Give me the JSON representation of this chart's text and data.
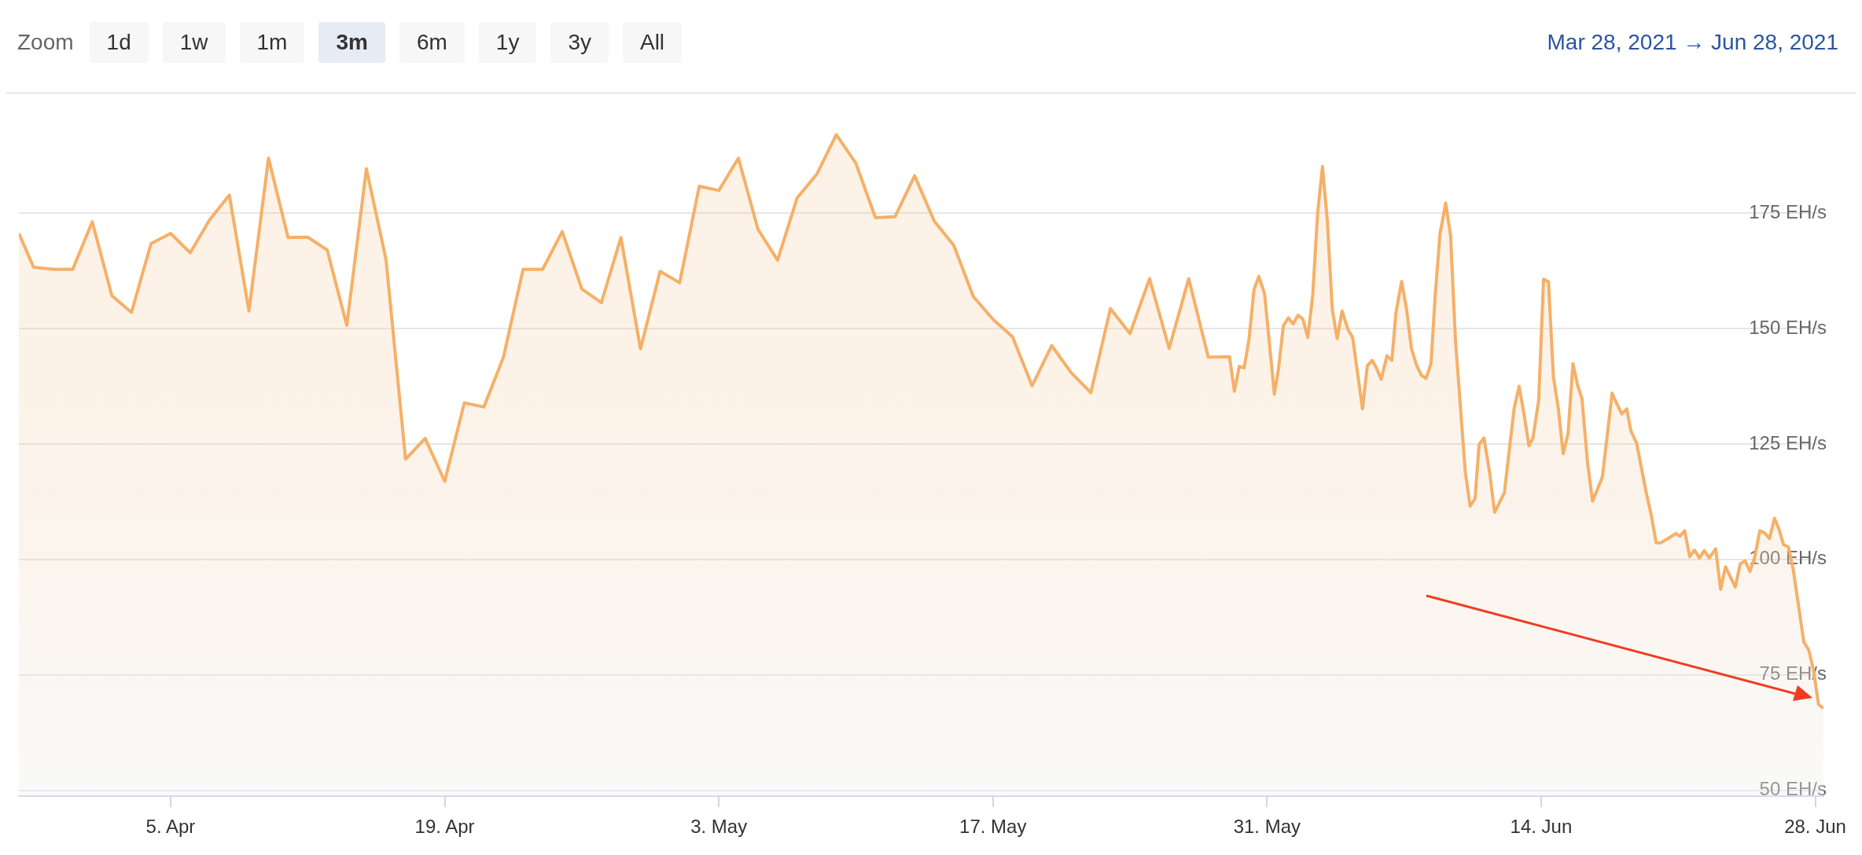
{
  "chart_data": {
    "type": "area",
    "annotations": [
      "Zoom",
      "1d",
      "1w",
      "1m",
      "3m",
      "6m",
      "1y",
      "3y",
      "All",
      "Mar 28, 2021 → Jun 28, 2021"
    ],
    "x": [
      "2021-03-28T06:00",
      "2021-03-29",
      "2021-03-30",
      "2021-03-31",
      "2021-04-01",
      "2021-04-02",
      "2021-04-03",
      "2021-04-04",
      "2021-04-05",
      "2021-04-06",
      "2021-04-07",
      "2021-04-08",
      "2021-04-09",
      "2021-04-10",
      "2021-04-11",
      "2021-04-12",
      "2021-04-13",
      "2021-04-14",
      "2021-04-15",
      "2021-04-16",
      "2021-04-17",
      "2021-04-18",
      "2021-04-19",
      "2021-04-20",
      "2021-04-21",
      "2021-04-22",
      "2021-04-23",
      "2021-04-24",
      "2021-04-25",
      "2021-04-26",
      "2021-04-27",
      "2021-04-28",
      "2021-04-29",
      "2021-04-30",
      "2021-05-01",
      "2021-05-02",
      "2021-05-03",
      "2021-05-04",
      "2021-05-05",
      "2021-05-06",
      "2021-05-07",
      "2021-05-08",
      "2021-05-09",
      "2021-05-10",
      "2021-05-11",
      "2021-05-12",
      "2021-05-13",
      "2021-05-14",
      "2021-05-15",
      "2021-05-16",
      "2021-05-17",
      "2021-05-18",
      "2021-05-19",
      "2021-05-20",
      "2021-05-21",
      "2021-05-22",
      "2021-05-23",
      "2021-05-24",
      "2021-05-25",
      "2021-05-26",
      "2021-05-27",
      "2021-05-28",
      "2021-05-29T02:00",
      "2021-05-29T08:00",
      "2021-05-29T14:00",
      "2021-05-29T20:00",
      "2021-05-30T02:00",
      "2021-05-30T08:00",
      "2021-05-30T14:00",
      "2021-05-30T21:00",
      "2021-05-31T09:00",
      "2021-05-31T14:00",
      "2021-05-31T20:00",
      "2021-06-01T02:00",
      "2021-06-01T08:00",
      "2021-06-01T14:00",
      "2021-06-01T20:00",
      "2021-06-02T02:00",
      "2021-06-02T08:00",
      "2021-06-02T14:00",
      "2021-06-02T20:00",
      "2021-06-03T02:00",
      "2021-06-03T08:00",
      "2021-06-03T14:00",
      "2021-06-03T20:00",
      "2021-06-04T03:00",
      "2021-06-04T09:00",
      "2021-06-04T21:00",
      "2021-06-05T03:00",
      "2021-06-05T09:00",
      "2021-06-05T14:00",
      "2021-06-05T20:00",
      "2021-06-06T03:00",
      "2021-06-06T09:00",
      "2021-06-06T14:00",
      "2021-06-06T21:00",
      "2021-06-07T03:00",
      "2021-06-07T09:00",
      "2021-06-07T15:00",
      "2021-06-07T21:00",
      "2021-06-08T03:00",
      "2021-06-08T09:00",
      "2021-06-08T14:00",
      "2021-06-08T20:00",
      "2021-06-09T03:00",
      "2021-06-09T09:00",
      "2021-06-09T15:00",
      "2021-06-10T03:00",
      "2021-06-10T09:00",
      "2021-06-10T15:00",
      "2021-06-10T20:00",
      "2021-06-11T02:00",
      "2021-06-11T09:00",
      "2021-06-11T15:00",
      "2021-06-12T03:00",
      "2021-06-12T09:00",
      "2021-06-12T15:00",
      "2021-06-12T21:00",
      "2021-06-13T03:00",
      "2021-06-13T09:00",
      "2021-06-13T14:00",
      "2021-06-13T21:00",
      "2021-06-14T03:00",
      "2021-06-14T09:00",
      "2021-06-14T15:00",
      "2021-06-14T21:00",
      "2021-06-15T03:00",
      "2021-06-15T09:00",
      "2021-06-15T15:00",
      "2021-06-15T21:00",
      "2021-06-16T02:00",
      "2021-06-16T09:00",
      "2021-06-16T15:00",
      "2021-06-17T03:00",
      "2021-06-17T09:00",
      "2021-06-17T15:00",
      "2021-06-17T21:00",
      "2021-06-18T03:00",
      "2021-06-18T09:00",
      "2021-06-18T14:00",
      "2021-06-18T21:00",
      "2021-06-19T09:00",
      "2021-06-19T15:00",
      "2021-06-19T21:00",
      "2021-06-20T03:00",
      "2021-06-20T15:00",
      "2021-06-20T21:00",
      "2021-06-21T02:00",
      "2021-06-21T08:00",
      "2021-06-21T14:00",
      "2021-06-21T20:00",
      "2021-06-22T02:00",
      "2021-06-22T08:00",
      "2021-06-22T14:00",
      "2021-06-22T22:00",
      "2021-06-23T04:00",
      "2021-06-23T10:00",
      "2021-06-23T22:00",
      "2021-06-24T04:00",
      "2021-06-24T10:00",
      "2021-06-24T16:00",
      "2021-06-24T22:00",
      "2021-06-25T04:00",
      "2021-06-25T10:00",
      "2021-06-25T16:00",
      "2021-06-25T22:00",
      "2021-06-26T04:00",
      "2021-06-26T09:00",
      "2021-06-26T15:00",
      "2021-06-26T21:00",
      "2021-06-27T10:00",
      "2021-06-27T16:00",
      "2021-06-27T22:00",
      "2021-06-28T04:00",
      "2021-06-28T10:00"
    ],
    "series": [
      {
        "color": "#f5b068",
        "values": [
          170.6,
          163.3,
          162.8,
          162.8,
          173.1,
          157.1,
          153.5,
          168.4,
          170.6,
          166.4,
          173.6,
          178.9,
          153.8,
          186.9,
          169.7,
          169.8,
          167.0,
          150.7,
          184.6,
          165.0,
          121.7,
          126.2,
          116.9,
          133.9,
          133.0,
          143.8,
          162.8,
          162.8,
          171.0,
          158.6,
          155.6,
          169.7,
          145.6,
          162.4,
          159.9,
          180.8,
          179.9,
          186.9,
          171.5,
          164.8,
          178.3,
          183.4,
          192.0,
          185.8,
          174.0,
          174.2,
          183.1,
          173.3,
          168.0,
          156.9,
          152.0,
          148.2,
          137.6,
          146.3,
          140.4,
          136.1,
          154.3,
          148.9,
          160.8,
          145.7,
          160.8,
          143.8,
          143.9,
          136.4,
          141.8,
          141.5,
          147.8,
          158.4,
          161.3,
          157.5,
          135.8,
          141.2,
          150.6,
          152.3,
          151.0,
          152.9,
          152.0,
          148.1,
          157.2,
          175.0,
          185.1,
          173.1,
          154.2,
          147.8,
          153.8,
          149.9,
          148.0,
          132.6,
          142.0,
          143.1,
          141.5,
          139.0,
          144.1,
          143.1,
          153.4,
          160.2,
          154.2,
          145.7,
          142.2,
          139.9,
          139.2,
          142.4,
          156.8,
          170.5,
          177.2,
          170.1,
          147.4,
          119.0,
          111.5,
          113.2,
          124.9,
          126.3,
          118.6,
          110.2,
          114.5,
          123.8,
          132.8,
          137.5,
          131.5,
          124.6,
          126.3,
          134.5,
          160.7,
          160.1,
          139.6,
          132.8,
          122.9,
          127.2,
          142.4,
          137.5,
          134.9,
          120.8,
          112.6,
          117.8,
          126.8,
          136.0,
          133.6,
          131.5,
          132.6,
          127.8,
          125.2,
          114.3,
          109.6,
          103.6,
          103.6,
          104.9,
          105.6,
          105.0,
          106.2,
          100.6,
          102.0,
          100.3,
          101.9,
          100.3,
          102.3,
          93.5,
          98.4,
          94.0,
          99.0,
          99.7,
          97.4,
          100.6,
          106.2,
          105.7,
          104.5,
          108.9,
          106.3,
          103.2,
          102.7,
          97.8,
          82.1,
          80.4,
          75.9,
          68.6,
          67.7
        ]
      }
    ],
    "xlim": [
      "2021-03-28T06:00",
      "2021-06-28T10:00"
    ],
    "xticks": [
      {
        "value": "2021-04-05",
        "label": "5. Apr"
      },
      {
        "value": "2021-04-19",
        "label": "19. Apr"
      },
      {
        "value": "2021-05-03",
        "label": "3. May"
      },
      {
        "value": "2021-05-17",
        "label": "17. May"
      },
      {
        "value": "2021-05-31",
        "label": "31. May"
      },
      {
        "value": "2021-06-14",
        "label": "14. Jun"
      },
      {
        "value": "2021-06-28",
        "label": "28. Jun"
      }
    ],
    "ylim": [
      48.7,
      201
    ],
    "yticks": [
      {
        "value": 50,
        "label": "50 EH/s"
      },
      {
        "value": 75,
        "label": "75 EH/s"
      },
      {
        "value": 100,
        "label": "100 EH/s"
      },
      {
        "value": 125,
        "label": "125 EH/s"
      },
      {
        "value": 150,
        "label": "150 EH/s"
      },
      {
        "value": 175,
        "label": "175 EH/s"
      }
    ],
    "grid": "y",
    "legend": false,
    "marker": "none",
    "line_style": "solid"
  }
}
